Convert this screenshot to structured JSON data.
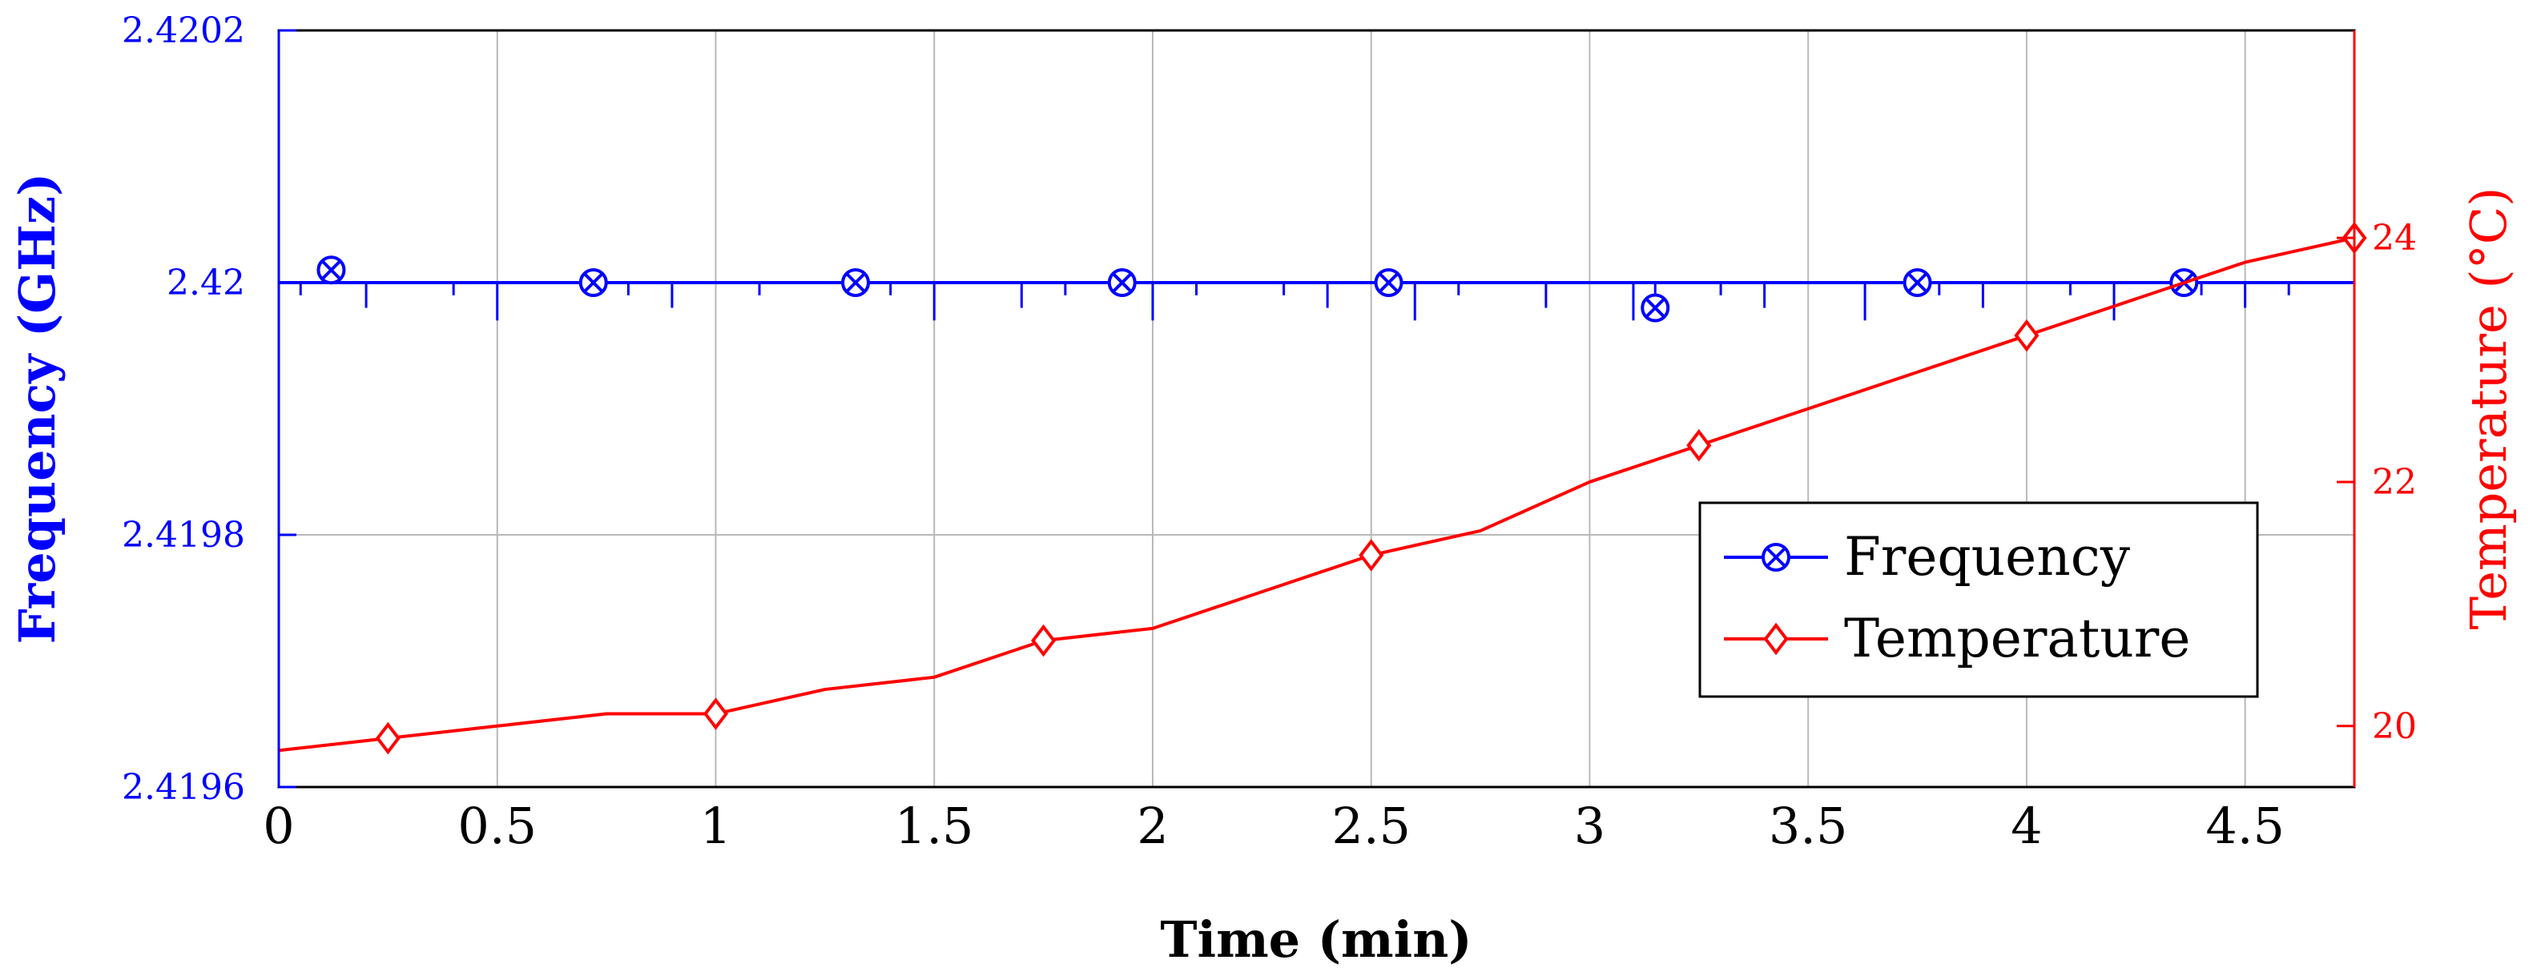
{
  "chart_data": {
    "type": "line",
    "xlabel": "Time (min)",
    "ylabel_left": "Frequency (GHz)",
    "ylabel_right": "Temperature (°C)",
    "xlim": [
      0,
      4.75
    ],
    "ylim_left": [
      2.4196,
      2.4202
    ],
    "ylim_right": [
      19.5,
      25.7
    ],
    "x_ticks": [
      "0",
      "0.5",
      "1",
      "1.5",
      "2",
      "2.5",
      "3",
      "3.5",
      "4",
      "4.5"
    ],
    "x_tick_values": [
      0,
      0.5,
      1,
      1.5,
      2,
      2.5,
      3,
      3.5,
      4,
      4.5
    ],
    "y_left_ticks": [
      "2.4196",
      "2.4198",
      "2.42",
      "2.4202"
    ],
    "y_left_tick_values": [
      2.4196,
      2.4198,
      2.42,
      2.4202
    ],
    "y_right_ticks": [
      "20",
      "22",
      "24"
    ],
    "y_right_tick_values": [
      20,
      22,
      24
    ],
    "grid": true,
    "legend_position": "right-center",
    "colors": {
      "frequency": "#0000ff",
      "temperature": "#ff0000"
    },
    "series": [
      {
        "name": "Frequency",
        "axis": "left",
        "color": "#0000ff",
        "marker": "circle-x",
        "baseline": 2.42,
        "x": [
          0,
          0.05,
          0.12,
          0.13,
          0.2,
          0.3,
          0.4,
          0.5,
          0.6,
          0.72,
          0.8,
          0.9,
          1.0,
          1.1,
          1.2,
          1.32,
          1.4,
          1.5,
          1.6,
          1.7,
          1.8,
          1.93,
          2.0,
          2.1,
          2.2,
          2.3,
          2.4,
          2.54,
          2.6,
          2.7,
          2.8,
          2.9,
          3.0,
          3.1,
          3.15,
          3.2,
          3.3,
          3.4,
          3.5,
          3.63,
          3.75,
          3.8,
          3.9,
          4.0,
          4.1,
          4.2,
          4.36,
          4.4,
          4.5,
          4.6,
          4.75
        ],
        "y": [
          2.42,
          2.41999,
          2.42001,
          2.42,
          2.41998,
          2.42,
          2.41999,
          2.41997,
          2.42,
          2.42,
          2.41999,
          2.41998,
          2.42,
          2.41999,
          2.42,
          2.42,
          2.41999,
          2.41997,
          2.42,
          2.41998,
          2.41999,
          2.42,
          2.41997,
          2.41999,
          2.42,
          2.41999,
          2.41998,
          2.42,
          2.41997,
          2.41999,
          2.42,
          2.41998,
          2.42,
          2.41997,
          2.41998,
          2.42,
          2.41999,
          2.41998,
          2.42,
          2.41997,
          2.42,
          2.41999,
          2.41998,
          2.42,
          2.41999,
          2.41997,
          2.42,
          2.41999,
          2.41998,
          2.41999,
          2.42
        ],
        "marker_x": [
          0.12,
          0.72,
          1.32,
          1.93,
          2.54,
          3.15,
          3.75,
          4.36
        ],
        "marker_y": [
          2.42001,
          2.42,
          2.42,
          2.42,
          2.42,
          2.41998,
          2.42,
          2.42
        ]
      },
      {
        "name": "Temperature",
        "axis": "right",
        "color": "#ff0000",
        "marker": "diamond",
        "x": [
          0,
          0.25,
          0.5,
          0.75,
          1.0,
          1.25,
          1.5,
          1.75,
          2.0,
          2.25,
          2.5,
          2.75,
          3.0,
          3.25,
          3.5,
          3.75,
          4.0,
          4.25,
          4.5,
          4.75
        ],
        "y": [
          19.8,
          19.9,
          20.0,
          20.1,
          20.1,
          20.3,
          20.4,
          20.7,
          20.8,
          21.1,
          21.4,
          21.6,
          22.0,
          22.3,
          22.6,
          22.9,
          23.2,
          23.5,
          23.8,
          24.0
        ],
        "marker_x": [
          0.25,
          1.0,
          1.75,
          2.5,
          3.25,
          4.0,
          4.75
        ],
        "marker_y": [
          19.9,
          20.1,
          20.7,
          21.4,
          22.3,
          23.2,
          24.0
        ]
      }
    ]
  }
}
